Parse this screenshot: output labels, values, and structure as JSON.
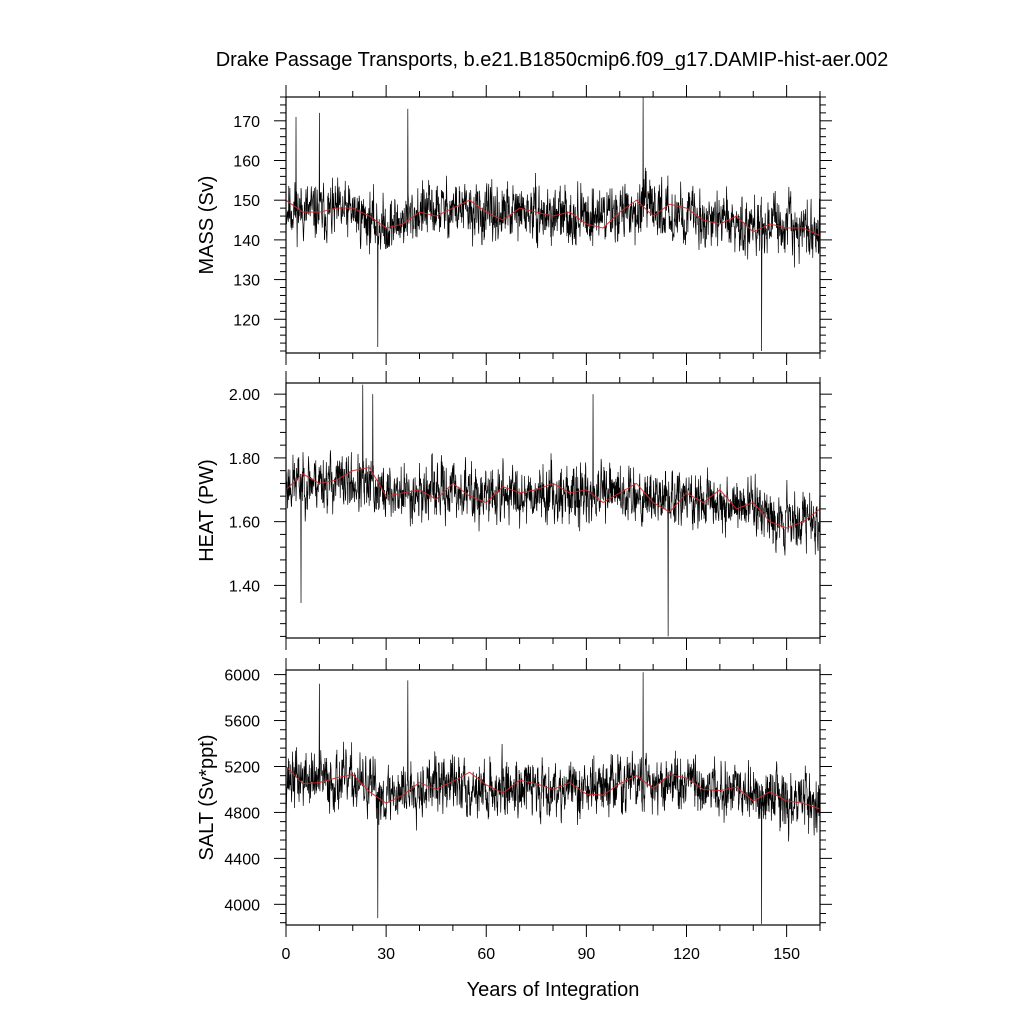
{
  "figure": {
    "title": "Drake Passage Transports, b.e21.B1850cmip6.f09_g17.DAMIP-hist-aer.002",
    "xlabel": "Years of Integration"
  },
  "colors": {
    "raw": "#000000",
    "smooth": "#d62728"
  },
  "chart_data": [
    {
      "type": "line",
      "panel": "mass",
      "ylabel": "MASS (Sv)",
      "xlim": [
        0,
        160
      ],
      "ylim": [
        111.5,
        176
      ],
      "yticks": [
        120,
        130,
        140,
        150,
        160,
        170
      ],
      "ytick_labels": [
        "120",
        "130",
        "140",
        "150",
        "160",
        "170"
      ],
      "xticks": [
        0,
        30,
        60,
        90,
        120,
        150
      ],
      "xtick_labels": [
        "0",
        "30",
        "60",
        "90",
        "120",
        "150"
      ],
      "grid": false,
      "legend": "none",
      "noise_amplitude": 7.5,
      "seed": 11,
      "spikes": [
        [
          27.5,
          113
        ],
        [
          142.5,
          112
        ],
        [
          36.5,
          173
        ],
        [
          107,
          176
        ],
        [
          10,
          172
        ],
        [
          3,
          171
        ]
      ],
      "series": [
        {
          "style": "raw",
          "x": [
            0,
            10,
            20,
            30,
            40,
            50,
            60,
            70,
            80,
            90,
            100,
            110,
            120,
            130,
            140,
            150,
            160
          ],
          "values": [
            148,
            147,
            147,
            143,
            147,
            148,
            146,
            147,
            146,
            146,
            147,
            148,
            146,
            145,
            144,
            143,
            142
          ]
        },
        {
          "style": "smooth",
          "x": [
            0,
            5,
            10,
            15,
            20,
            25,
            30,
            35,
            40,
            45,
            50,
            55,
            60,
            65,
            70,
            75,
            80,
            85,
            90,
            95,
            100,
            105,
            110,
            115,
            120,
            125,
            130,
            135,
            140,
            145,
            150,
            155,
            160
          ],
          "values": [
            150,
            147,
            147,
            148,
            148,
            146,
            143,
            144,
            147,
            146,
            148,
            150,
            147,
            145,
            148,
            147,
            146,
            147,
            144,
            143,
            147,
            150,
            146,
            149,
            148,
            145,
            144,
            146,
            142,
            144,
            143,
            143,
            141
          ]
        }
      ]
    },
    {
      "type": "line",
      "panel": "heat",
      "ylabel": "HEAT (PW)",
      "xlim": [
        0,
        160
      ],
      "ylim": [
        1.235,
        2.035
      ],
      "yticks": [
        1.4,
        1.6,
        1.8,
        2.0
      ],
      "ytick_labels": [
        "1.40",
        "1.60",
        "1.80",
        "2.00"
      ],
      "xticks": [
        0,
        30,
        60,
        90,
        120,
        150
      ],
      "xtick_labels": [
        "0",
        "30",
        "60",
        "90",
        "120",
        "150"
      ],
      "grid": false,
      "legend": "none",
      "noise_amplitude": 0.095,
      "seed": 23,
      "spikes": [
        [
          4.5,
          1.345
        ],
        [
          114.5,
          1.24
        ],
        [
          23,
          2.03
        ],
        [
          26,
          2.0
        ],
        [
          92,
          2.0
        ]
      ],
      "series": [
        {
          "style": "raw",
          "x": [
            0,
            10,
            20,
            30,
            40,
            50,
            60,
            70,
            80,
            90,
            100,
            110,
            120,
            130,
            140,
            150,
            160
          ],
          "values": [
            1.72,
            1.73,
            1.72,
            1.69,
            1.69,
            1.7,
            1.68,
            1.69,
            1.69,
            1.68,
            1.69,
            1.68,
            1.67,
            1.66,
            1.65,
            1.61,
            1.6
          ]
        },
        {
          "style": "smooth",
          "x": [
            0,
            5,
            10,
            15,
            20,
            25,
            30,
            35,
            40,
            45,
            50,
            55,
            60,
            65,
            70,
            75,
            80,
            85,
            90,
            95,
            100,
            105,
            110,
            115,
            120,
            125,
            130,
            135,
            140,
            145,
            150,
            155,
            160
          ],
          "values": [
            1.7,
            1.75,
            1.72,
            1.73,
            1.76,
            1.77,
            1.68,
            1.69,
            1.7,
            1.67,
            1.72,
            1.68,
            1.66,
            1.71,
            1.69,
            1.7,
            1.72,
            1.69,
            1.7,
            1.66,
            1.69,
            1.72,
            1.66,
            1.63,
            1.69,
            1.66,
            1.7,
            1.64,
            1.66,
            1.6,
            1.58,
            1.6,
            1.64
          ]
        }
      ]
    },
    {
      "type": "line",
      "panel": "salt",
      "ylabel": "SALT (Sv*ppt)",
      "xlim": [
        0,
        160
      ],
      "ylim": [
        3820,
        6040
      ],
      "yticks": [
        4000,
        4400,
        4800,
        5200,
        5600,
        6000
      ],
      "ytick_labels": [
        "4000",
        "4400",
        "4800",
        "5200",
        "5600",
        "6000"
      ],
      "xticks": [
        0,
        30,
        60,
        90,
        120,
        150
      ],
      "xtick_labels": [
        "0",
        "30",
        "60",
        "90",
        "120",
        "150"
      ],
      "grid": false,
      "legend": "none",
      "noise_amplitude": 270,
      "seed": 37,
      "spikes": [
        [
          27.5,
          3880
        ],
        [
          142.5,
          3830
        ],
        [
          36.5,
          5950
        ],
        [
          107,
          6020
        ],
        [
          10,
          5920
        ]
      ],
      "series": [
        {
          "style": "raw",
          "x": [
            0,
            10,
            20,
            30,
            40,
            50,
            60,
            70,
            80,
            90,
            100,
            110,
            120,
            130,
            140,
            150,
            160
          ],
          "values": [
            5100,
            5080,
            5070,
            4950,
            5040,
            5050,
            4990,
            5030,
            5020,
            5010,
            5050,
            5080,
            5030,
            4990,
            4950,
            4920,
            4880
          ]
        },
        {
          "style": "smooth",
          "x": [
            0,
            5,
            10,
            15,
            20,
            25,
            30,
            35,
            40,
            45,
            50,
            55,
            60,
            65,
            70,
            75,
            80,
            85,
            90,
            95,
            100,
            105,
            110,
            115,
            120,
            125,
            130,
            135,
            140,
            145,
            150,
            155,
            160
          ],
          "values": [
            5200,
            5050,
            5060,
            5100,
            5130,
            4980,
            4880,
            4950,
            5060,
            5000,
            5070,
            5150,
            5040,
            4970,
            5080,
            5050,
            5000,
            5060,
            4960,
            4950,
            5050,
            5120,
            5010,
            5130,
            5100,
            5000,
            4990,
            5020,
            4900,
            4980,
            4900,
            4880,
            4830
          ]
        }
      ]
    }
  ]
}
